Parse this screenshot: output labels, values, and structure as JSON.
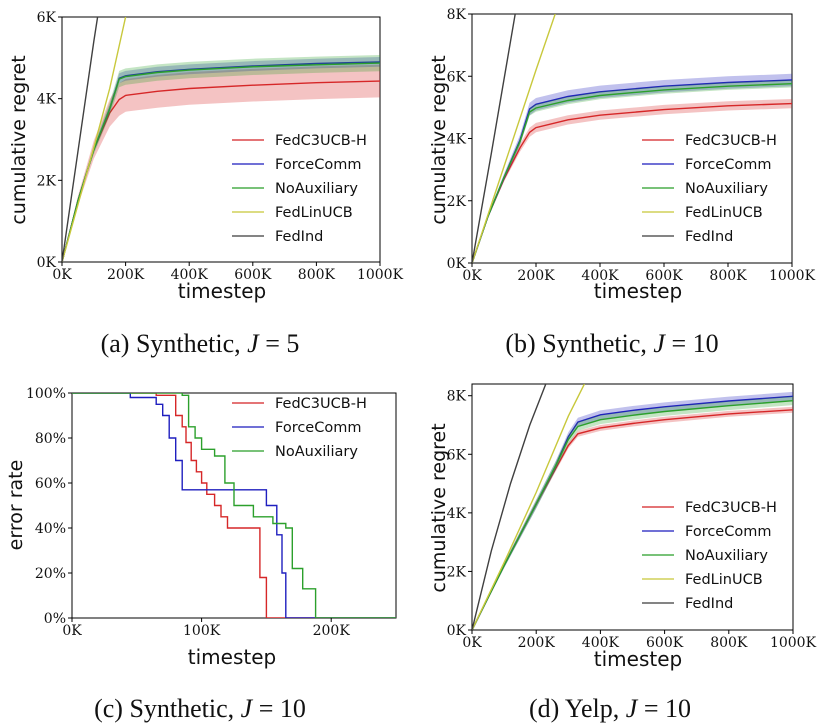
{
  "chart_data": [
    {
      "id": "a",
      "type": "line",
      "caption": "(a) Synthetic, ",
      "caption_var": "J",
      "caption_eq": " = 5",
      "xlabel": "timestep",
      "ylabel": "cumulative regret",
      "xlim": [
        0,
        1000
      ],
      "ylim": [
        0,
        6000
      ],
      "xticks": [
        0,
        200,
        400,
        600,
        800,
        1000
      ],
      "xtick_labels": [
        "0K",
        "200K",
        "400K",
        "600K",
        "800K",
        "1000K"
      ],
      "yticks": [
        0,
        2000,
        4000,
        6000
      ],
      "ytick_labels": [
        "0K",
        "2K",
        "4K",
        "6K"
      ],
      "legend_loc": "lower-right",
      "series": [
        {
          "name": "FedC3UCB-H",
          "color": "#d62728",
          "band": 400,
          "x": [
            0,
            50,
            100,
            150,
            180,
            200,
            300,
            400,
            600,
            800,
            1000
          ],
          "y": [
            0,
            1500,
            2750,
            3650,
            3980,
            4080,
            4180,
            4250,
            4330,
            4390,
            4430
          ]
        },
        {
          "name": "ForceComm",
          "color": "#1f1fbf",
          "band": 120,
          "x": [
            0,
            50,
            100,
            150,
            180,
            200,
            300,
            400,
            600,
            800,
            1000
          ],
          "y": [
            0,
            1500,
            2750,
            3750,
            4500,
            4560,
            4660,
            4720,
            4800,
            4860,
            4900
          ]
        },
        {
          "name": "NoAuxiliary",
          "color": "#2ca02c",
          "band": 200,
          "x": [
            0,
            50,
            100,
            150,
            180,
            200,
            300,
            400,
            600,
            800,
            1000
          ],
          "y": [
            0,
            1500,
            2750,
            3750,
            4480,
            4540,
            4640,
            4700,
            4780,
            4830,
            4870
          ]
        },
        {
          "name": "FedLinUCB",
          "color": "#c8c83c",
          "band": 0,
          "x": [
            0,
            100,
            150,
            200
          ],
          "y": [
            0,
            2800,
            4250,
            6000
          ]
        },
        {
          "name": "FedInd",
          "color": "#404040",
          "band": 0,
          "x": [
            0,
            50,
            100,
            112
          ],
          "y": [
            0,
            2700,
            5400,
            6000
          ]
        }
      ]
    },
    {
      "id": "b",
      "type": "line",
      "caption": "(b) Synthetic, ",
      "caption_var": "J",
      "caption_eq": " = 10",
      "xlabel": "timestep",
      "ylabel": "cumulative regret",
      "xlim": [
        0,
        1000
      ],
      "ylim": [
        0,
        8000
      ],
      "xticks": [
        0,
        200,
        400,
        600,
        800,
        1000
      ],
      "xtick_labels": [
        "0K",
        "200K",
        "400K",
        "600K",
        "800K",
        "1000K"
      ],
      "yticks": [
        0,
        2000,
        4000,
        6000,
        8000
      ],
      "ytick_labels": [
        "0K",
        "2K",
        "4K",
        "6K",
        "8K"
      ],
      "legend_loc": "lower-right",
      "series": [
        {
          "name": "FedC3UCB-H",
          "color": "#d62728",
          "band": 150,
          "x": [
            0,
            50,
            100,
            150,
            180,
            200,
            300,
            400,
            600,
            800,
            1000
          ],
          "y": [
            0,
            1500,
            2700,
            3700,
            4200,
            4350,
            4600,
            4750,
            4930,
            5050,
            5120
          ]
        },
        {
          "name": "ForceComm",
          "color": "#1f1fbf",
          "band": 200,
          "x": [
            0,
            50,
            100,
            150,
            180,
            200,
            300,
            400,
            600,
            800,
            1000
          ],
          "y": [
            0,
            1500,
            2750,
            3950,
            4950,
            5100,
            5350,
            5500,
            5680,
            5800,
            5880
          ]
        },
        {
          "name": "NoAuxiliary",
          "color": "#2ca02c",
          "band": 120,
          "x": [
            0,
            50,
            100,
            150,
            180,
            200,
            300,
            400,
            600,
            800,
            1000
          ],
          "y": [
            0,
            1500,
            2750,
            3900,
            4850,
            4980,
            5220,
            5380,
            5560,
            5680,
            5760
          ]
        },
        {
          "name": "FedLinUCB",
          "color": "#c8c83c",
          "band": 0,
          "x": [
            0,
            100,
            200,
            260
          ],
          "y": [
            0,
            3100,
            6200,
            8000
          ]
        },
        {
          "name": "FedInd",
          "color": "#404040",
          "band": 0,
          "x": [
            0,
            60,
            120,
            135
          ],
          "y": [
            0,
            3500,
            7100,
            8000
          ]
        }
      ]
    },
    {
      "id": "c",
      "type": "line",
      "caption": "(c) Synthetic, ",
      "caption_var": "J",
      "caption_eq": " = 10",
      "xlabel": "timestep",
      "ylabel": "error rate",
      "xlim": [
        0,
        250
      ],
      "ylim": [
        0,
        100
      ],
      "xticks": [
        0,
        100,
        200
      ],
      "xtick_labels": [
        "0K",
        "100K",
        "200K"
      ],
      "yticks": [
        0,
        20,
        40,
        60,
        80,
        100
      ],
      "ytick_labels": [
        "0%",
        "20%",
        "40%",
        "60%",
        "80%",
        "100%"
      ],
      "legend_loc": "top-right",
      "series": [
        {
          "name": "FedC3UCB-H",
          "color": "#d62728",
          "step": true,
          "x": [
            0,
            65,
            80,
            85,
            88,
            92,
            96,
            100,
            104,
            110,
            115,
            120,
            130,
            145,
            150,
            250
          ],
          "y": [
            100,
            99,
            90,
            85,
            78,
            70,
            65,
            60,
            55,
            50,
            45,
            40,
            40,
            18,
            0,
            0
          ]
        },
        {
          "name": "ForceComm",
          "color": "#1f1fbf",
          "step": true,
          "x": [
            0,
            45,
            65,
            70,
            75,
            80,
            85,
            100,
            125,
            140,
            150,
            158,
            162,
            165,
            250
          ],
          "y": [
            100,
            98,
            95,
            90,
            80,
            70,
            57,
            57,
            57,
            57,
            50,
            37,
            20,
            0,
            0
          ]
        },
        {
          "name": "NoAuxiliary",
          "color": "#2ca02c",
          "step": true,
          "x": [
            0,
            85,
            90,
            95,
            100,
            110,
            118,
            125,
            140,
            155,
            165,
            170,
            178,
            188,
            250
          ],
          "y": [
            100,
            99,
            85,
            80,
            75,
            72,
            60,
            50,
            45,
            42,
            40,
            22,
            13,
            0,
            0
          ]
        }
      ]
    },
    {
      "id": "d",
      "type": "line",
      "caption": "(d) Yelp, ",
      "caption_var": "J",
      "caption_eq": " = 10",
      "xlabel": "timestep",
      "ylabel": "cumulative regret",
      "xlim": [
        0,
        1000
      ],
      "ylim": [
        0,
        8400
      ],
      "xticks": [
        0,
        200,
        400,
        600,
        800,
        1000
      ],
      "xtick_labels": [
        "0K",
        "200K",
        "400K",
        "600K",
        "800K",
        "1000K"
      ],
      "yticks": [
        0,
        2000,
        4000,
        6000,
        8000
      ],
      "ytick_labels": [
        "0K",
        "2K",
        "4K",
        "6K",
        "8K"
      ],
      "legend_loc": "lower-right",
      "series": [
        {
          "name": "FedC3UCB-H",
          "color": "#d62728",
          "band": 100,
          "x": [
            0,
            100,
            200,
            260,
            300,
            330,
            400,
            500,
            600,
            800,
            1000
          ],
          "y": [
            0,
            2200,
            4300,
            5500,
            6300,
            6700,
            6900,
            7050,
            7180,
            7380,
            7520
          ]
        },
        {
          "name": "ForceComm",
          "color": "#1f1fbf",
          "band": 150,
          "x": [
            0,
            100,
            200,
            260,
            300,
            330,
            400,
            500,
            600,
            800,
            1000
          ],
          "y": [
            0,
            2200,
            4300,
            5600,
            6600,
            7100,
            7350,
            7500,
            7620,
            7820,
            7980
          ]
        },
        {
          "name": "NoAuxiliary",
          "color": "#2ca02c",
          "band": 150,
          "x": [
            0,
            100,
            200,
            260,
            300,
            330,
            400,
            500,
            600,
            800,
            1000
          ],
          "y": [
            0,
            2200,
            4300,
            5600,
            6500,
            6950,
            7180,
            7330,
            7460,
            7660,
            7830
          ]
        },
        {
          "name": "FedLinUCB",
          "color": "#c8c83c",
          "band": 0,
          "x": [
            0,
            100,
            200,
            300,
            350
          ],
          "y": [
            0,
            2300,
            4700,
            7300,
            8400
          ]
        },
        {
          "name": "FedInd",
          "color": "#404040",
          "band": 0,
          "x": [
            0,
            60,
            120,
            180,
            230
          ],
          "y": [
            0,
            2700,
            5000,
            7000,
            8400
          ]
        }
      ]
    }
  ]
}
